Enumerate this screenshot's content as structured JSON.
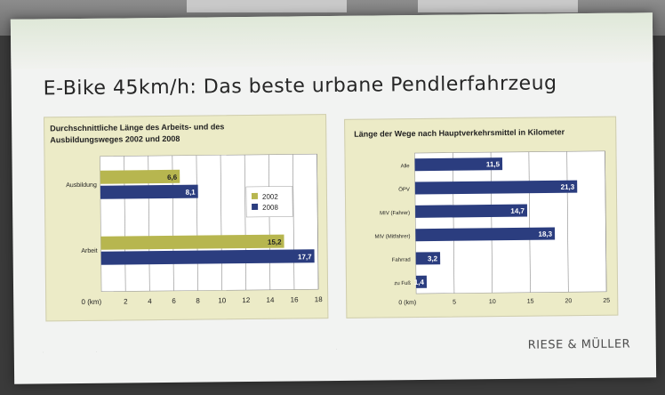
{
  "slide": {
    "title": "E-Bike 45km/h: Das beste urbane Pendlerfahrzeug",
    "brand": "RIESE & MÜLLER"
  },
  "colors": {
    "series_2002": "#b7b64f",
    "series_2008": "#2b3d7f",
    "panel_bg": "#ecebc7"
  },
  "chart_data": [
    {
      "type": "bar",
      "orientation": "horizontal",
      "title_lines": [
        "Durchschnittliche Länge des Arbeits- und des",
        "Ausbildungsweges 2002 und 2008"
      ],
      "categories": [
        "Ausbildung",
        "Arbeit"
      ],
      "series": [
        {
          "name": "2002",
          "values": [
            6.6,
            15.2
          ],
          "labels": [
            "6,6",
            "15,2"
          ]
        },
        {
          "name": "2008",
          "values": [
            8.1,
            17.7
          ],
          "labels": [
            "8,1",
            "17,7"
          ]
        }
      ],
      "x_ticks": [
        "0 (km)",
        "2",
        "4",
        "6",
        "8",
        "10",
        "12",
        "14",
        "16",
        "18"
      ],
      "xlim": [
        0,
        18
      ],
      "legend_position": "top-right",
      "grid": true
    },
    {
      "type": "bar",
      "orientation": "horizontal",
      "title": "Länge der Wege nach Hauptverkehrsmittel in Kilometer",
      "categories": [
        "Alle",
        "ÖPV",
        "MIV (Fahrer)",
        "MIV (Mitfahrer)",
        "Fahrrad",
        "zu Fuß"
      ],
      "values": [
        11.5,
        21.3,
        14.7,
        18.3,
        3.2,
        1.4
      ],
      "labels": [
        "11,5",
        "21,3",
        "14,7",
        "18,3",
        "3,2",
        "1,4"
      ],
      "x_ticks": [
        "0 (km)",
        "5",
        "10",
        "15",
        "20",
        "25"
      ],
      "xlim": [
        0,
        25
      ],
      "grid": true
    }
  ]
}
